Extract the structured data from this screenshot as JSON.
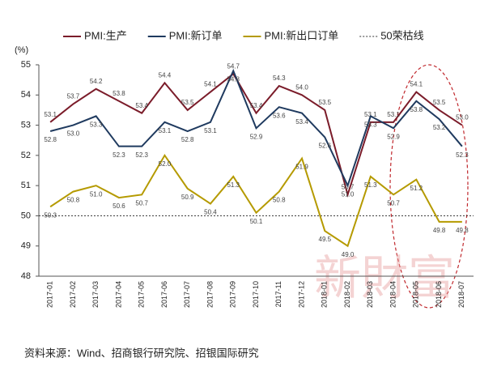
{
  "chart_data": {
    "type": "line",
    "y_label": "(%)",
    "categories": [
      "2017-01",
      "2017-02",
      "2017-03",
      "2017-04",
      "2017-05",
      "2017-06",
      "2017-07",
      "2017-08",
      "2017-09",
      "2017-10",
      "2017-11",
      "2017-12",
      "2018-01",
      "2018-02",
      "2018-03",
      "2018-04",
      "2018-05",
      "2018-06",
      "2018-07"
    ],
    "series": [
      {
        "name": "PMI:生产",
        "color": "#7b1c2a",
        "values": [
          53.1,
          53.7,
          54.2,
          53.8,
          53.4,
          54.4,
          53.5,
          54.1,
          54.7,
          53.4,
          54.3,
          54.0,
          53.5,
          50.7,
          53.1,
          53.1,
          54.1,
          53.5,
          53.0
        ],
        "value_labels": [
          "53.1",
          "53.7",
          "54.2",
          "53.8",
          "53.4",
          "54.4",
          "53.5",
          "54.1",
          "54.7",
          "53.4",
          "54.3",
          "54.0",
          "53.5",
          "50.7",
          "53.1",
          "53.1",
          "54.1",
          "53.5",
          "53.0"
        ]
      },
      {
        "name": "PMI:新订单",
        "color": "#1f3a5f",
        "values": [
          52.8,
          53.0,
          53.3,
          52.3,
          52.3,
          53.1,
          52.8,
          53.1,
          54.8,
          52.9,
          53.6,
          53.4,
          52.6,
          51.0,
          53.3,
          52.9,
          53.8,
          53.2,
          52.3
        ],
        "value_labels": [
          "52.8",
          "53.0",
          "53.3",
          "52.3",
          "52.3",
          "53.1",
          "52.8",
          "53.1",
          "54.8",
          "52.9",
          "53.6",
          "53.4",
          "52.6",
          "51.0",
          "53.3",
          "52.9",
          "53.8",
          "53.2",
          "52.3"
        ]
      },
      {
        "name": "PMI:新出口订单",
        "color": "#b59a00",
        "values": [
          50.3,
          50.8,
          51.0,
          50.6,
          50.7,
          52.0,
          50.9,
          50.4,
          51.3,
          50.1,
          50.8,
          51.9,
          49.5,
          49.0,
          51.3,
          50.7,
          51.2,
          49.8,
          49.8
        ],
        "value_labels": [
          "50.3",
          "50.8",
          "51.0",
          "50.6",
          "50.7",
          "52.0",
          "50.9",
          "50.4",
          "51.3",
          "50.1",
          "50.8",
          "51.9",
          "49.5",
          "49.0",
          "51.3",
          "50.7",
          "51.2",
          "49.8",
          "49.8"
        ]
      }
    ],
    "reference": {
      "name": "50荣枯线",
      "value": 50,
      "color": "#333333"
    },
    "ylim": [
      48,
      55
    ],
    "yticks": [
      48,
      49,
      50,
      51,
      52,
      53,
      54,
      55
    ],
    "source": "资料来源：Wind、招商银行研究院、招银国际研究",
    "watermark": "新財富"
  }
}
